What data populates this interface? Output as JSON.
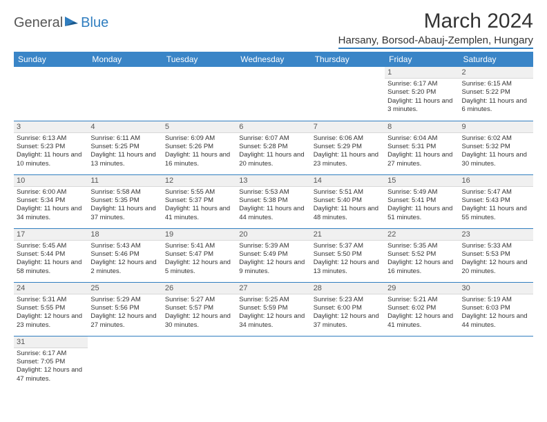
{
  "logo": {
    "text1": "General",
    "text2": "Blue"
  },
  "title": "March 2024",
  "location": "Harsany, Borsod-Abauj-Zemplen, Hungary",
  "colors": {
    "header_bg": "#3a85c7",
    "header_text": "#ffffff",
    "accent": "#2f7dbf",
    "daynum_bg": "#f0f0f0",
    "text": "#333333"
  },
  "weekdays": [
    "Sunday",
    "Monday",
    "Tuesday",
    "Wednesday",
    "Thursday",
    "Friday",
    "Saturday"
  ],
  "weeks": [
    [
      {
        "n": "",
        "sr": "",
        "ss": "",
        "dl": ""
      },
      {
        "n": "",
        "sr": "",
        "ss": "",
        "dl": ""
      },
      {
        "n": "",
        "sr": "",
        "ss": "",
        "dl": ""
      },
      {
        "n": "",
        "sr": "",
        "ss": "",
        "dl": ""
      },
      {
        "n": "",
        "sr": "",
        "ss": "",
        "dl": ""
      },
      {
        "n": "1",
        "sr": "Sunrise: 6:17 AM",
        "ss": "Sunset: 5:20 PM",
        "dl": "Daylight: 11 hours and 3 minutes."
      },
      {
        "n": "2",
        "sr": "Sunrise: 6:15 AM",
        "ss": "Sunset: 5:22 PM",
        "dl": "Daylight: 11 hours and 6 minutes."
      }
    ],
    [
      {
        "n": "3",
        "sr": "Sunrise: 6:13 AM",
        "ss": "Sunset: 5:23 PM",
        "dl": "Daylight: 11 hours and 10 minutes."
      },
      {
        "n": "4",
        "sr": "Sunrise: 6:11 AM",
        "ss": "Sunset: 5:25 PM",
        "dl": "Daylight: 11 hours and 13 minutes."
      },
      {
        "n": "5",
        "sr": "Sunrise: 6:09 AM",
        "ss": "Sunset: 5:26 PM",
        "dl": "Daylight: 11 hours and 16 minutes."
      },
      {
        "n": "6",
        "sr": "Sunrise: 6:07 AM",
        "ss": "Sunset: 5:28 PM",
        "dl": "Daylight: 11 hours and 20 minutes."
      },
      {
        "n": "7",
        "sr": "Sunrise: 6:06 AM",
        "ss": "Sunset: 5:29 PM",
        "dl": "Daylight: 11 hours and 23 minutes."
      },
      {
        "n": "8",
        "sr": "Sunrise: 6:04 AM",
        "ss": "Sunset: 5:31 PM",
        "dl": "Daylight: 11 hours and 27 minutes."
      },
      {
        "n": "9",
        "sr": "Sunrise: 6:02 AM",
        "ss": "Sunset: 5:32 PM",
        "dl": "Daylight: 11 hours and 30 minutes."
      }
    ],
    [
      {
        "n": "10",
        "sr": "Sunrise: 6:00 AM",
        "ss": "Sunset: 5:34 PM",
        "dl": "Daylight: 11 hours and 34 minutes."
      },
      {
        "n": "11",
        "sr": "Sunrise: 5:58 AM",
        "ss": "Sunset: 5:35 PM",
        "dl": "Daylight: 11 hours and 37 minutes."
      },
      {
        "n": "12",
        "sr": "Sunrise: 5:55 AM",
        "ss": "Sunset: 5:37 PM",
        "dl": "Daylight: 11 hours and 41 minutes."
      },
      {
        "n": "13",
        "sr": "Sunrise: 5:53 AM",
        "ss": "Sunset: 5:38 PM",
        "dl": "Daylight: 11 hours and 44 minutes."
      },
      {
        "n": "14",
        "sr": "Sunrise: 5:51 AM",
        "ss": "Sunset: 5:40 PM",
        "dl": "Daylight: 11 hours and 48 minutes."
      },
      {
        "n": "15",
        "sr": "Sunrise: 5:49 AM",
        "ss": "Sunset: 5:41 PM",
        "dl": "Daylight: 11 hours and 51 minutes."
      },
      {
        "n": "16",
        "sr": "Sunrise: 5:47 AM",
        "ss": "Sunset: 5:43 PM",
        "dl": "Daylight: 11 hours and 55 minutes."
      }
    ],
    [
      {
        "n": "17",
        "sr": "Sunrise: 5:45 AM",
        "ss": "Sunset: 5:44 PM",
        "dl": "Daylight: 11 hours and 58 minutes."
      },
      {
        "n": "18",
        "sr": "Sunrise: 5:43 AM",
        "ss": "Sunset: 5:46 PM",
        "dl": "Daylight: 12 hours and 2 minutes."
      },
      {
        "n": "19",
        "sr": "Sunrise: 5:41 AM",
        "ss": "Sunset: 5:47 PM",
        "dl": "Daylight: 12 hours and 5 minutes."
      },
      {
        "n": "20",
        "sr": "Sunrise: 5:39 AM",
        "ss": "Sunset: 5:49 PM",
        "dl": "Daylight: 12 hours and 9 minutes."
      },
      {
        "n": "21",
        "sr": "Sunrise: 5:37 AM",
        "ss": "Sunset: 5:50 PM",
        "dl": "Daylight: 12 hours and 13 minutes."
      },
      {
        "n": "22",
        "sr": "Sunrise: 5:35 AM",
        "ss": "Sunset: 5:52 PM",
        "dl": "Daylight: 12 hours and 16 minutes."
      },
      {
        "n": "23",
        "sr": "Sunrise: 5:33 AM",
        "ss": "Sunset: 5:53 PM",
        "dl": "Daylight: 12 hours and 20 minutes."
      }
    ],
    [
      {
        "n": "24",
        "sr": "Sunrise: 5:31 AM",
        "ss": "Sunset: 5:55 PM",
        "dl": "Daylight: 12 hours and 23 minutes."
      },
      {
        "n": "25",
        "sr": "Sunrise: 5:29 AM",
        "ss": "Sunset: 5:56 PM",
        "dl": "Daylight: 12 hours and 27 minutes."
      },
      {
        "n": "26",
        "sr": "Sunrise: 5:27 AM",
        "ss": "Sunset: 5:57 PM",
        "dl": "Daylight: 12 hours and 30 minutes."
      },
      {
        "n": "27",
        "sr": "Sunrise: 5:25 AM",
        "ss": "Sunset: 5:59 PM",
        "dl": "Daylight: 12 hours and 34 minutes."
      },
      {
        "n": "28",
        "sr": "Sunrise: 5:23 AM",
        "ss": "Sunset: 6:00 PM",
        "dl": "Daylight: 12 hours and 37 minutes."
      },
      {
        "n": "29",
        "sr": "Sunrise: 5:21 AM",
        "ss": "Sunset: 6:02 PM",
        "dl": "Daylight: 12 hours and 41 minutes."
      },
      {
        "n": "30",
        "sr": "Sunrise: 5:19 AM",
        "ss": "Sunset: 6:03 PM",
        "dl": "Daylight: 12 hours and 44 minutes."
      }
    ],
    [
      {
        "n": "31",
        "sr": "Sunrise: 6:17 AM",
        "ss": "Sunset: 7:05 PM",
        "dl": "Daylight: 12 hours and 47 minutes."
      },
      {
        "n": "",
        "sr": "",
        "ss": "",
        "dl": ""
      },
      {
        "n": "",
        "sr": "",
        "ss": "",
        "dl": ""
      },
      {
        "n": "",
        "sr": "",
        "ss": "",
        "dl": ""
      },
      {
        "n": "",
        "sr": "",
        "ss": "",
        "dl": ""
      },
      {
        "n": "",
        "sr": "",
        "ss": "",
        "dl": ""
      },
      {
        "n": "",
        "sr": "",
        "ss": "",
        "dl": ""
      }
    ]
  ]
}
